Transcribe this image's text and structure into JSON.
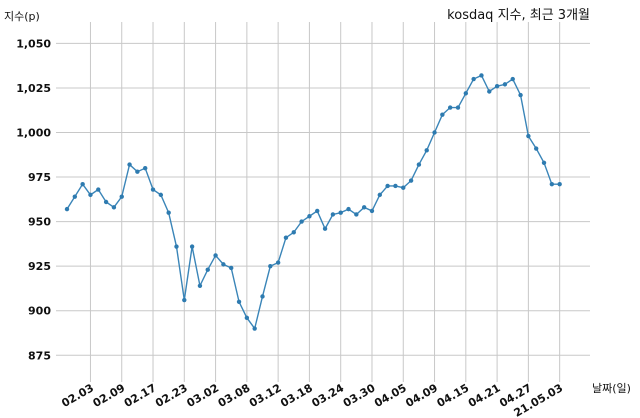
{
  "chart_data": {
    "type": "line",
    "title": "kosdaq 지수, 최근 3개월",
    "ylabel": "지수(p)",
    "xlabel": "날짜(일)",
    "ylim": [
      860,
      1062
    ],
    "yticks": [
      875,
      900,
      925,
      950,
      975,
      1000,
      1025,
      1050
    ],
    "ytick_labels": [
      "875",
      "900",
      "925",
      "950",
      "975",
      "1,000",
      "1,025",
      "1,050"
    ],
    "xticks": [
      "21.02.03",
      "21.02.09",
      "21.02.17",
      "21.02.23",
      "21.03.02",
      "21.03.08",
      "21.03.12",
      "21.03.18",
      "21.03.24",
      "21.03.30",
      "21.04.05",
      "21.04.09",
      "21.04.15",
      "21.04.21",
      "21.04.27",
      "21.05.03"
    ],
    "xtick_labels": [
      "02.03",
      "02.09",
      "02.17",
      "02.23",
      "03.02",
      "03.08",
      "03.12",
      "03.18",
      "03.24",
      "03.30",
      "04.05",
      "04.09",
      "04.15",
      "04.21",
      "04.27",
      "21.05.03"
    ],
    "grid": true,
    "color": "#3a85b8",
    "series": [
      {
        "x": [
          "21.01.29",
          "21.02.01",
          "21.02.02",
          "21.02.03",
          "21.02.04",
          "21.02.05",
          "21.02.08",
          "21.02.09",
          "21.02.10",
          "21.02.15",
          "21.02.16",
          "21.02.17",
          "21.02.18",
          "21.02.19",
          "21.02.22",
          "21.02.23",
          "21.02.24",
          "21.02.25",
          "21.02.26",
          "21.03.02",
          "21.03.03",
          "21.03.04",
          "21.03.05",
          "21.03.08",
          "21.03.09",
          "21.03.10",
          "21.03.11",
          "21.03.12",
          "21.03.15",
          "21.03.16",
          "21.03.17",
          "21.03.18",
          "21.03.19",
          "21.03.22",
          "21.03.23",
          "21.03.24",
          "21.03.25",
          "21.03.26",
          "21.03.29",
          "21.03.30",
          "21.03.31",
          "21.04.01",
          "21.04.02",
          "21.04.05",
          "21.04.06",
          "21.04.07",
          "21.04.08",
          "21.04.09",
          "21.04.12",
          "21.04.13",
          "21.04.14",
          "21.04.15",
          "21.04.16",
          "21.04.19",
          "21.04.20",
          "21.04.21",
          "21.04.22",
          "21.04.23",
          "21.04.26",
          "21.04.27",
          "21.04.28",
          "21.04.29",
          "21.04.30",
          "21.05.03"
        ],
        "values": [
          957,
          964,
          971,
          965,
          968,
          961,
          958,
          964,
          982,
          978,
          980,
          968,
          965,
          955,
          936,
          906,
          936,
          914,
          923,
          931,
          926,
          924,
          905,
          896,
          890,
          908,
          925,
          927,
          941,
          944,
          950,
          953,
          956,
          946,
          954,
          955,
          957,
          954,
          958,
          956,
          965,
          970,
          970,
          969,
          973,
          982,
          990,
          1000,
          1010,
          1014,
          1014,
          1022,
          1030,
          1032,
          1023,
          1026,
          1027,
          1030,
          1021,
          998,
          991,
          983,
          971,
          971
        ]
      }
    ]
  }
}
